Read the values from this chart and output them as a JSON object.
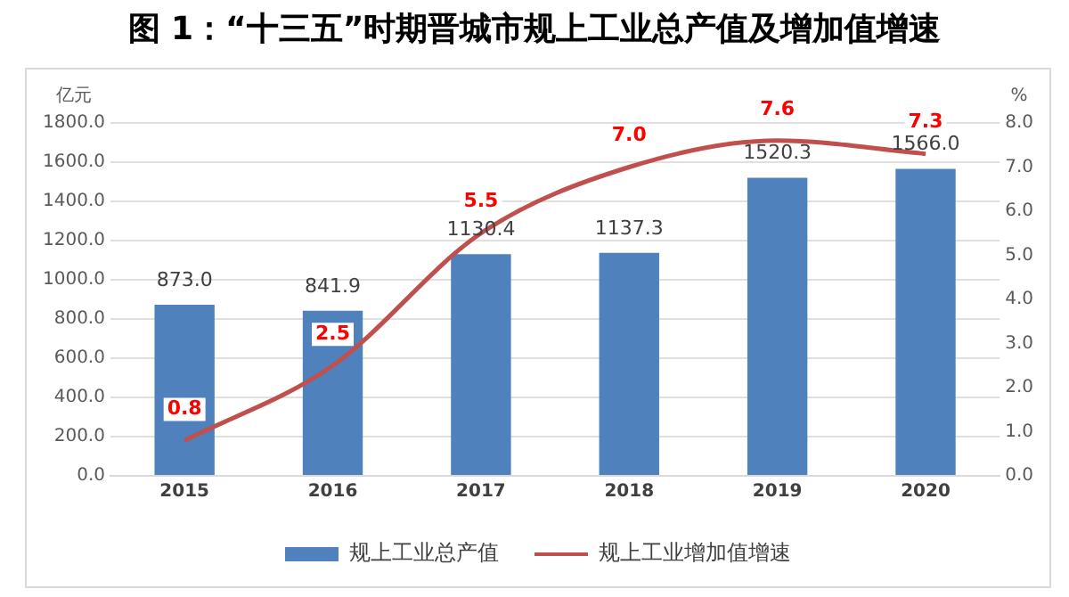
{
  "chart_data": {
    "type": "bar",
    "title": "图 1：“十三五”时期晋城市规上工业总产值及增加值增速",
    "categories": [
      "2015",
      "2016",
      "2017",
      "2018",
      "2019",
      "2020"
    ],
    "ylabel": "亿元",
    "y2label": "%",
    "series": [
      {
        "name": "规上工业总产值",
        "color": "#4f81bd",
        "values": [
          873.0,
          841.9,
          1130.4,
          1137.3,
          1520.3,
          1566.0
        ],
        "value_labels": [
          "873.0",
          "841.9",
          "1130.4",
          "1137.3",
          "1520.3",
          "1566.0"
        ]
      },
      {
        "name": "规上工业增加值增速",
        "type": "line",
        "axis": "y2",
        "color": "#c0504d",
        "values": [
          0.8,
          2.5,
          5.5,
          7.0,
          7.6,
          7.3
        ],
        "value_labels": [
          "0.8",
          "2.5",
          "5.5",
          "7.0",
          "7.6",
          "7.3"
        ]
      }
    ],
    "ylim": [
      0,
      1800
    ],
    "yticks": [
      {
        "value": 0,
        "label": "0.0"
      },
      {
        "value": 200,
        "label": "200.0"
      },
      {
        "value": 400,
        "label": "400.0"
      },
      {
        "value": 600,
        "label": "600.0"
      },
      {
        "value": 800,
        "label": "800.0"
      },
      {
        "value": 1000,
        "label": "1000.0"
      },
      {
        "value": 1200,
        "label": "1200.0"
      },
      {
        "value": 1400,
        "label": "1400.0"
      },
      {
        "value": 1600,
        "label": "1600.0"
      },
      {
        "value": 1800,
        "label": "1800.0"
      }
    ],
    "y2lim": [
      0,
      8
    ],
    "y2ticks": [
      {
        "value": 0,
        "label": "0.0"
      },
      {
        "value": 1,
        "label": "1.0"
      },
      {
        "value": 2,
        "label": "2.0"
      },
      {
        "value": 3,
        "label": "3.0"
      },
      {
        "value": 4,
        "label": "4.0"
      },
      {
        "value": 5,
        "label": "5.0"
      },
      {
        "value": 6,
        "label": "6.0"
      },
      {
        "value": 7,
        "label": "7.0"
      },
      {
        "value": 8,
        "label": "8.0"
      }
    ],
    "grid": "y",
    "legend": "bottom",
    "marker": "none",
    "line_style": "solid"
  }
}
